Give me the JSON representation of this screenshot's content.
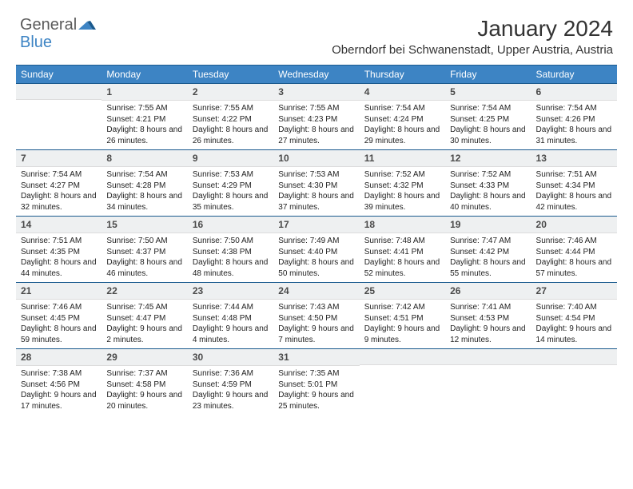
{
  "logo": {
    "general": "General",
    "blue": "Blue"
  },
  "title": "January 2024",
  "location": "Oberndorf bei Schwanenstadt, Upper Austria, Austria",
  "colors": {
    "header_bg": "#3d84c4",
    "header_text": "#ffffff",
    "border": "#1a5a8e",
    "daynum_bg": "#eef0f1",
    "daynum_text": "#4a4a4a",
    "body_text": "#222222",
    "logo_gray": "#5a5a5a",
    "logo_blue": "#3d84c4",
    "background": "#ffffff"
  },
  "typography": {
    "title_fontsize": 28,
    "location_fontsize": 15,
    "dayhead_fontsize": 12,
    "daynum_fontsize": 12,
    "info_fontsize": 10
  },
  "day_headers": [
    "Sunday",
    "Monday",
    "Tuesday",
    "Wednesday",
    "Thursday",
    "Friday",
    "Saturday"
  ],
  "weeks": [
    [
      {
        "n": "",
        "sunrise": "",
        "sunset": "",
        "daylight": ""
      },
      {
        "n": "1",
        "sunrise": "Sunrise: 7:55 AM",
        "sunset": "Sunset: 4:21 PM",
        "daylight": "Daylight: 8 hours and 26 minutes."
      },
      {
        "n": "2",
        "sunrise": "Sunrise: 7:55 AM",
        "sunset": "Sunset: 4:22 PM",
        "daylight": "Daylight: 8 hours and 26 minutes."
      },
      {
        "n": "3",
        "sunrise": "Sunrise: 7:55 AM",
        "sunset": "Sunset: 4:23 PM",
        "daylight": "Daylight: 8 hours and 27 minutes."
      },
      {
        "n": "4",
        "sunrise": "Sunrise: 7:54 AM",
        "sunset": "Sunset: 4:24 PM",
        "daylight": "Daylight: 8 hours and 29 minutes."
      },
      {
        "n": "5",
        "sunrise": "Sunrise: 7:54 AM",
        "sunset": "Sunset: 4:25 PM",
        "daylight": "Daylight: 8 hours and 30 minutes."
      },
      {
        "n": "6",
        "sunrise": "Sunrise: 7:54 AM",
        "sunset": "Sunset: 4:26 PM",
        "daylight": "Daylight: 8 hours and 31 minutes."
      }
    ],
    [
      {
        "n": "7",
        "sunrise": "Sunrise: 7:54 AM",
        "sunset": "Sunset: 4:27 PM",
        "daylight": "Daylight: 8 hours and 32 minutes."
      },
      {
        "n": "8",
        "sunrise": "Sunrise: 7:54 AM",
        "sunset": "Sunset: 4:28 PM",
        "daylight": "Daylight: 8 hours and 34 minutes."
      },
      {
        "n": "9",
        "sunrise": "Sunrise: 7:53 AM",
        "sunset": "Sunset: 4:29 PM",
        "daylight": "Daylight: 8 hours and 35 minutes."
      },
      {
        "n": "10",
        "sunrise": "Sunrise: 7:53 AM",
        "sunset": "Sunset: 4:30 PM",
        "daylight": "Daylight: 8 hours and 37 minutes."
      },
      {
        "n": "11",
        "sunrise": "Sunrise: 7:52 AM",
        "sunset": "Sunset: 4:32 PM",
        "daylight": "Daylight: 8 hours and 39 minutes."
      },
      {
        "n": "12",
        "sunrise": "Sunrise: 7:52 AM",
        "sunset": "Sunset: 4:33 PM",
        "daylight": "Daylight: 8 hours and 40 minutes."
      },
      {
        "n": "13",
        "sunrise": "Sunrise: 7:51 AM",
        "sunset": "Sunset: 4:34 PM",
        "daylight": "Daylight: 8 hours and 42 minutes."
      }
    ],
    [
      {
        "n": "14",
        "sunrise": "Sunrise: 7:51 AM",
        "sunset": "Sunset: 4:35 PM",
        "daylight": "Daylight: 8 hours and 44 minutes."
      },
      {
        "n": "15",
        "sunrise": "Sunrise: 7:50 AM",
        "sunset": "Sunset: 4:37 PM",
        "daylight": "Daylight: 8 hours and 46 minutes."
      },
      {
        "n": "16",
        "sunrise": "Sunrise: 7:50 AM",
        "sunset": "Sunset: 4:38 PM",
        "daylight": "Daylight: 8 hours and 48 minutes."
      },
      {
        "n": "17",
        "sunrise": "Sunrise: 7:49 AM",
        "sunset": "Sunset: 4:40 PM",
        "daylight": "Daylight: 8 hours and 50 minutes."
      },
      {
        "n": "18",
        "sunrise": "Sunrise: 7:48 AM",
        "sunset": "Sunset: 4:41 PM",
        "daylight": "Daylight: 8 hours and 52 minutes."
      },
      {
        "n": "19",
        "sunrise": "Sunrise: 7:47 AM",
        "sunset": "Sunset: 4:42 PM",
        "daylight": "Daylight: 8 hours and 55 minutes."
      },
      {
        "n": "20",
        "sunrise": "Sunrise: 7:46 AM",
        "sunset": "Sunset: 4:44 PM",
        "daylight": "Daylight: 8 hours and 57 minutes."
      }
    ],
    [
      {
        "n": "21",
        "sunrise": "Sunrise: 7:46 AM",
        "sunset": "Sunset: 4:45 PM",
        "daylight": "Daylight: 8 hours and 59 minutes."
      },
      {
        "n": "22",
        "sunrise": "Sunrise: 7:45 AM",
        "sunset": "Sunset: 4:47 PM",
        "daylight": "Daylight: 9 hours and 2 minutes."
      },
      {
        "n": "23",
        "sunrise": "Sunrise: 7:44 AM",
        "sunset": "Sunset: 4:48 PM",
        "daylight": "Daylight: 9 hours and 4 minutes."
      },
      {
        "n": "24",
        "sunrise": "Sunrise: 7:43 AM",
        "sunset": "Sunset: 4:50 PM",
        "daylight": "Daylight: 9 hours and 7 minutes."
      },
      {
        "n": "25",
        "sunrise": "Sunrise: 7:42 AM",
        "sunset": "Sunset: 4:51 PM",
        "daylight": "Daylight: 9 hours and 9 minutes."
      },
      {
        "n": "26",
        "sunrise": "Sunrise: 7:41 AM",
        "sunset": "Sunset: 4:53 PM",
        "daylight": "Daylight: 9 hours and 12 minutes."
      },
      {
        "n": "27",
        "sunrise": "Sunrise: 7:40 AM",
        "sunset": "Sunset: 4:54 PM",
        "daylight": "Daylight: 9 hours and 14 minutes."
      }
    ],
    [
      {
        "n": "28",
        "sunrise": "Sunrise: 7:38 AM",
        "sunset": "Sunset: 4:56 PM",
        "daylight": "Daylight: 9 hours and 17 minutes."
      },
      {
        "n": "29",
        "sunrise": "Sunrise: 7:37 AM",
        "sunset": "Sunset: 4:58 PM",
        "daylight": "Daylight: 9 hours and 20 minutes."
      },
      {
        "n": "30",
        "sunrise": "Sunrise: 7:36 AM",
        "sunset": "Sunset: 4:59 PM",
        "daylight": "Daylight: 9 hours and 23 minutes."
      },
      {
        "n": "31",
        "sunrise": "Sunrise: 7:35 AM",
        "sunset": "Sunset: 5:01 PM",
        "daylight": "Daylight: 9 hours and 25 minutes."
      },
      {
        "n": "",
        "sunrise": "",
        "sunset": "",
        "daylight": ""
      },
      {
        "n": "",
        "sunrise": "",
        "sunset": "",
        "daylight": ""
      },
      {
        "n": "",
        "sunrise": "",
        "sunset": "",
        "daylight": ""
      }
    ]
  ]
}
